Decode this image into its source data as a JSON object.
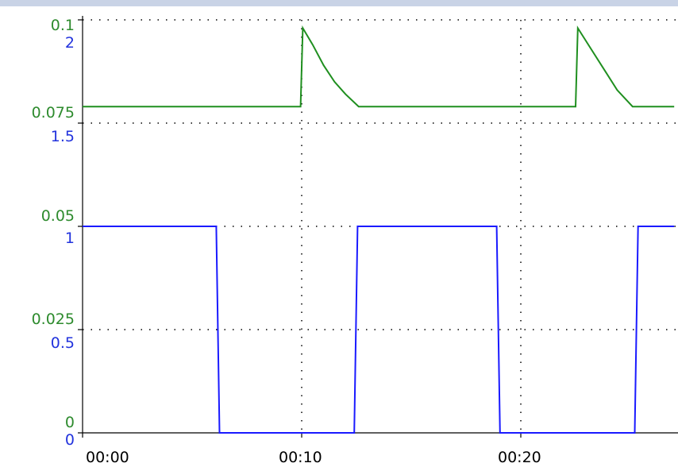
{
  "chart_data": {
    "type": "line",
    "title": "",
    "xlabel": "",
    "x_ticks": [
      "00:00",
      "00:10",
      "00:20"
    ],
    "x_range_seconds": [
      0,
      27
    ],
    "y_left_green": {
      "ticks": [
        "0.1",
        "0.075",
        "0.05",
        "0.025",
        "0"
      ],
      "range": [
        0,
        0.1
      ]
    },
    "y_left_blue": {
      "ticks": [
        "2",
        "1.5",
        "1",
        "0.5",
        "0"
      ],
      "range": [
        0,
        2
      ]
    },
    "grid": "dotted",
    "legend": "none",
    "series": [
      {
        "axis": "green",
        "color": "#1f8f1f",
        "points": [
          [
            0,
            0.079
          ],
          [
            9.95,
            0.079
          ],
          [
            10.05,
            0.098
          ],
          [
            10.5,
            0.094
          ],
          [
            11.0,
            0.089
          ],
          [
            11.5,
            0.085
          ],
          [
            12.0,
            0.082
          ],
          [
            12.6,
            0.079
          ],
          [
            22.5,
            0.079
          ],
          [
            22.6,
            0.098
          ],
          [
            23.2,
            0.093
          ],
          [
            23.8,
            0.088
          ],
          [
            24.4,
            0.083
          ],
          [
            25.1,
            0.079
          ],
          [
            27,
            0.079
          ]
        ]
      },
      {
        "axis": "blue",
        "color": "#1a1aff",
        "points": [
          [
            0,
            1
          ],
          [
            6.1,
            1
          ],
          [
            6.25,
            0
          ],
          [
            12.4,
            0
          ],
          [
            12.55,
            1
          ],
          [
            18.9,
            1
          ],
          [
            19.05,
            0
          ],
          [
            25.2,
            0
          ],
          [
            25.35,
            1
          ],
          [
            27,
            1
          ]
        ]
      }
    ],
    "colors": {
      "green_axis": "#2e8b2e",
      "blue_axis": "#2233dd",
      "grid": "#000000",
      "top_bar": "#c9d3e6"
    }
  }
}
